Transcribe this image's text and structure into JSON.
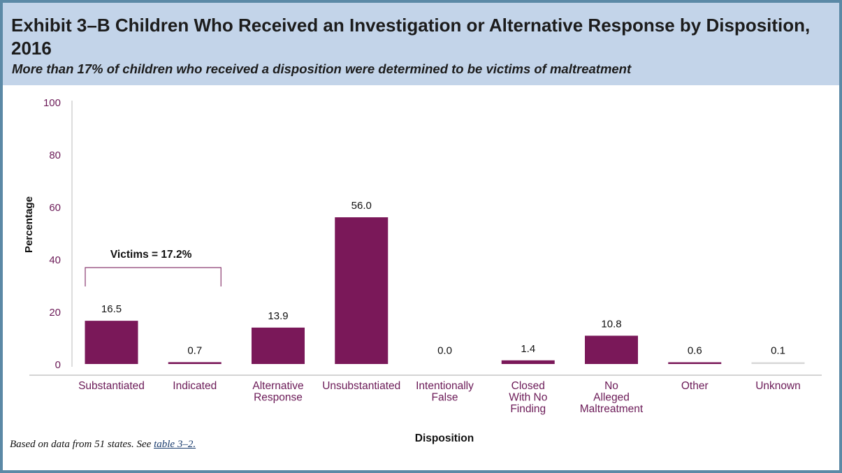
{
  "header": {
    "title": "Exhibit 3–B Children Who Received an Investigation or Alternative Response by Disposition, 2016",
    "subtitle": "More than 17% of children who received a disposition were determined to be victims of maltreatment"
  },
  "chart_data": {
    "type": "bar",
    "categories": [
      "Substantiated",
      "Indicated",
      "Alternative\nResponse",
      "Unsubstantiated",
      "Intentionally\nFalse",
      "Closed\nWith No\nFinding",
      "No\nAlleged\nMaltreatment",
      "Other",
      "Unknown"
    ],
    "values": [
      16.5,
      0.7,
      13.9,
      56.0,
      0.0,
      1.4,
      10.8,
      0.6,
      0.1
    ],
    "value_labels": [
      "16.5",
      "0.7",
      "13.9",
      "56.0",
      "0.0",
      "1.4",
      "10.8",
      "0.6",
      "0.1"
    ],
    "bar_colors": [
      "#7a1859",
      "#7a1859",
      "#7a1859",
      "#7a1859",
      "#ffffff",
      "#7a1859",
      "#7a1859",
      "#7a1859",
      "#d8d8d8"
    ],
    "xlabel": "Disposition",
    "ylabel": "Percentage",
    "ylim": [
      0,
      100
    ],
    "yticks": [
      0,
      20,
      40,
      60,
      80,
      100
    ],
    "grid": false,
    "annotations": [
      {
        "text": "Victims = 17.2%",
        "spans_categories": [
          0,
          1
        ]
      }
    ],
    "colors": {
      "bar": "#7a1859",
      "tick_text": "#6b1a57",
      "axis": "#bbbbbb",
      "bracket": "#8a3a70"
    }
  },
  "footnote": {
    "text": "Based on data from 51 states. See ",
    "link_text": "table 3–2."
  }
}
